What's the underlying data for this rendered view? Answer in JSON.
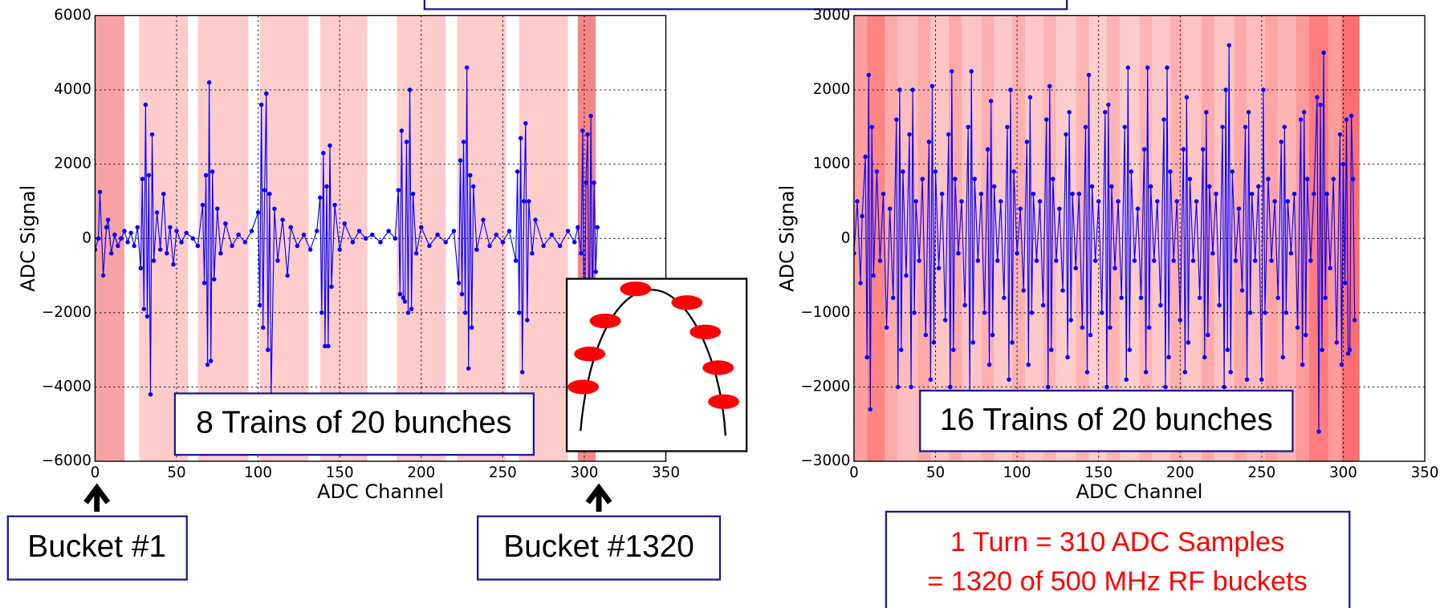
{
  "chart_data": [
    {
      "type": "line",
      "xlabel": "ADC Channel",
      "ylabel": "ADC Signal",
      "color": "#0000ff",
      "grid": true,
      "xlim": [
        0,
        350
      ],
      "xticks": [
        0,
        50,
        100,
        150,
        200,
        250,
        300,
        350
      ],
      "ylim": [
        -6000,
        6000
      ],
      "yticks": [
        {
          "value": -6000,
          "label": "−6000"
        },
        {
          "value": -4000,
          "label": "−4000"
        },
        {
          "value": -2000,
          "label": "−2000"
        },
        0,
        2000,
        4000,
        6000
      ],
      "bands": [
        {
          "x0": 0,
          "x1": 18,
          "color": "#f7a3a3"
        },
        {
          "x0": 27,
          "x1": 57,
          "color": "#ffcccc"
        },
        {
          "x0": 63,
          "x1": 94,
          "color": "#ffcccc"
        },
        {
          "x0": 101,
          "x1": 131,
          "color": "#ffcccc"
        },
        {
          "x0": 138,
          "x1": 167,
          "color": "#ffcccc"
        },
        {
          "x0": 185,
          "x1": 215,
          "color": "#ffcccc"
        },
        {
          "x0": 222,
          "x1": 252,
          "color": "#ffcccc"
        },
        {
          "x0": 260,
          "x1": 290,
          "color": "#ffcccc"
        },
        {
          "x0": 296,
          "x1": 307,
          "color": "#f48888"
        }
      ],
      "x": [
        0,
        2,
        3,
        5,
        7,
        8,
        10,
        12,
        14,
        16,
        18,
        20,
        22,
        24,
        26,
        28,
        29,
        30,
        31,
        32,
        33,
        34,
        35,
        36,
        38,
        40,
        42,
        44,
        46,
        48,
        50,
        53,
        56,
        60,
        63,
        66,
        67,
        68,
        69,
        70,
        71,
        72,
        73,
        75,
        77,
        80,
        84,
        88,
        92,
        96,
        100,
        101,
        102,
        103,
        104,
        105,
        106,
        107,
        108,
        110,
        112,
        115,
        118,
        120,
        124,
        128,
        132,
        136,
        138,
        139,
        140,
        141,
        142,
        143,
        144,
        145,
        147,
        150,
        153,
        158,
        162,
        166,
        170,
        175,
        180,
        184,
        186,
        187,
        188,
        189,
        190,
        191,
        192,
        193,
        194,
        195,
        197,
        200,
        205,
        210,
        215,
        220,
        223,
        224,
        225,
        226,
        227,
        228,
        229,
        230,
        231,
        232,
        234,
        238,
        242,
        246,
        250,
        254,
        258,
        259,
        260,
        261,
        262,
        263,
        264,
        265,
        266,
        268,
        270,
        275,
        280,
        285,
        290,
        294,
        296,
        298,
        299,
        300,
        301,
        302,
        303,
        304,
        305,
        306,
        307,
        308
      ],
      "values": [
        -300,
        0,
        1250,
        -1000,
        300,
        500,
        -400,
        100,
        -200,
        0,
        200,
        -100,
        150,
        -200,
        300,
        -800,
        1600,
        -1900,
        3600,
        -2100,
        1700,
        -4200,
        2800,
        -600,
        700,
        -300,
        1200,
        -400,
        300,
        -700,
        200,
        -100,
        150,
        0,
        -200,
        900,
        -1200,
        1700,
        -3400,
        4200,
        -3300,
        1800,
        -1100,
        800,
        -400,
        400,
        -200,
        100,
        -100,
        200,
        700,
        -1800,
        3600,
        -2400,
        1300,
        3900,
        -3000,
        1200,
        -4200,
        800,
        -600,
        500,
        -1000,
        300,
        -200,
        100,
        -300,
        200,
        1100,
        -2000,
        2300,
        -2900,
        1400,
        -2900,
        2500,
        -1300,
        900,
        -300,
        400,
        -100,
        200,
        0,
        100,
        -100,
        200,
        0,
        1300,
        -1500,
        2900,
        -1600,
        -1700,
        2600,
        -2000,
        4000,
        -1900,
        1200,
        -400,
        300,
        -200,
        100,
        -100,
        200,
        -1200,
        2100,
        -1500,
        2600,
        -2000,
        4600,
        -3500,
        1700,
        -2400,
        1400,
        -300,
        500,
        -200,
        100,
        -100,
        200,
        -600,
        1800,
        -2000,
        2700,
        -3600,
        1000,
        3100,
        -2200,
        1000,
        -400,
        500,
        -200,
        100,
        -200,
        200,
        -100,
        300,
        -400,
        2900,
        -4000,
        1500,
        2800,
        -3200,
        3300,
        -2000,
        1500,
        -900,
        300
      ],
      "annotations": [
        "8 Trains of 20 bunches",
        "Bucket #1",
        "Bucket #1320"
      ]
    },
    {
      "type": "line",
      "xlabel": "ADC Channel",
      "ylabel": "ADC Signal",
      "color": "#0000ff",
      "grid": true,
      "xlim": [
        0,
        350
      ],
      "xticks": [
        0,
        50,
        100,
        150,
        200,
        250,
        300,
        350
      ],
      "ylim": [
        -3000,
        3000
      ],
      "yticks": [
        {
          "value": -3000,
          "label": "−3000"
        },
        {
          "value": -2000,
          "label": "−2000"
        },
        {
          "value": -1000,
          "label": "−1000"
        },
        0,
        1000,
        2000,
        3000
      ],
      "bands": [
        {
          "x0": 0,
          "x1": 8,
          "color": "#ffa0a0"
        },
        {
          "x0": 8,
          "x1": 19,
          "color": "#ff8585"
        },
        {
          "x0": 19,
          "x1": 27,
          "color": "#ffaaaa"
        },
        {
          "x0": 27,
          "x1": 39,
          "color": "#ffbcbc"
        },
        {
          "x0": 39,
          "x1": 47,
          "color": "#ffaaaa"
        },
        {
          "x0": 47,
          "x1": 58,
          "color": "#ffc4c4"
        },
        {
          "x0": 58,
          "x1": 66,
          "color": "#ffaaaa"
        },
        {
          "x0": 66,
          "x1": 78,
          "color": "#ffc4c4"
        },
        {
          "x0": 78,
          "x1": 86,
          "color": "#ffb0b0"
        },
        {
          "x0": 86,
          "x1": 97,
          "color": "#ffc8c8"
        },
        {
          "x0": 97,
          "x1": 105,
          "color": "#ffb0b0"
        },
        {
          "x0": 105,
          "x1": 116,
          "color": "#ffc8c8"
        },
        {
          "x0": 116,
          "x1": 124,
          "color": "#ffb4b4"
        },
        {
          "x0": 124,
          "x1": 136,
          "color": "#ffcccc"
        },
        {
          "x0": 136,
          "x1": 144,
          "color": "#ffb4b4"
        },
        {
          "x0": 144,
          "x1": 155,
          "color": "#ffcccc"
        },
        {
          "x0": 155,
          "x1": 163,
          "color": "#ffb4b4"
        },
        {
          "x0": 163,
          "x1": 175,
          "color": "#ffcccc"
        },
        {
          "x0": 175,
          "x1": 183,
          "color": "#ffb4b4"
        },
        {
          "x0": 183,
          "x1": 194,
          "color": "#ffc8c8"
        },
        {
          "x0": 194,
          "x1": 202,
          "color": "#ffb0b0"
        },
        {
          "x0": 202,
          "x1": 213,
          "color": "#ffc4c4"
        },
        {
          "x0": 213,
          "x1": 221,
          "color": "#ffaaaa"
        },
        {
          "x0": 221,
          "x1": 233,
          "color": "#ffc4c4"
        },
        {
          "x0": 233,
          "x1": 241,
          "color": "#ffaaaa"
        },
        {
          "x0": 241,
          "x1": 252,
          "color": "#ffbcbc"
        },
        {
          "x0": 252,
          "x1": 260,
          "color": "#ffa4a4"
        },
        {
          "x0": 260,
          "x1": 271,
          "color": "#ffb4b4"
        },
        {
          "x0": 271,
          "x1": 279,
          "color": "#ff9a9a"
        },
        {
          "x0": 279,
          "x1": 291,
          "color": "#ff7c7c"
        },
        {
          "x0": 291,
          "x1": 299,
          "color": "#ff9a9a"
        },
        {
          "x0": 299,
          "x1": 310,
          "color": "#ff6e6e"
        }
      ],
      "x": [
        0,
        2,
        4,
        5,
        7,
        8,
        9,
        10,
        11,
        12,
        14,
        16,
        18,
        20,
        22,
        24,
        26,
        27,
        28,
        29,
        30,
        32,
        34,
        35,
        36,
        37,
        38,
        40,
        42,
        44,
        46,
        47,
        48,
        49,
        50,
        52,
        54,
        56,
        58,
        59,
        60,
        61,
        62,
        64,
        66,
        68,
        70,
        71,
        72,
        73,
        74,
        76,
        78,
        80,
        82,
        83,
        84,
        85,
        86,
        88,
        90,
        92,
        94,
        95,
        96,
        97,
        98,
        100,
        102,
        104,
        106,
        107,
        108,
        109,
        110,
        112,
        114,
        116,
        118,
        119,
        120,
        121,
        122,
        124,
        126,
        128,
        130,
        131,
        132,
        133,
        134,
        136,
        138,
        140,
        142,
        143,
        144,
        145,
        146,
        148,
        150,
        152,
        154,
        155,
        156,
        157,
        158,
        160,
        162,
        164,
        166,
        167,
        168,
        169,
        170,
        172,
        174,
        176,
        178,
        179,
        180,
        181,
        182,
        184,
        186,
        188,
        190,
        191,
        192,
        193,
        194,
        196,
        198,
        200,
        202,
        203,
        204,
        205,
        206,
        208,
        210,
        212,
        214,
        215,
        216,
        217,
        218,
        220,
        222,
        224,
        226,
        227,
        228,
        229,
        230,
        231,
        232,
        234,
        236,
        238,
        240,
        241,
        242,
        243,
        244,
        246,
        248,
        250,
        251,
        252,
        254,
        256,
        258,
        260,
        262,
        263,
        264,
        265,
        266,
        268,
        270,
        272,
        274,
        275,
        276,
        277,
        278,
        280,
        282,
        284,
        285,
        286,
        287,
        288,
        289,
        290,
        292,
        294,
        296,
        298,
        299,
        300,
        301,
        302,
        303,
        304,
        305,
        306,
        307
      ],
      "values": [
        -200,
        500,
        -600,
        300,
        1100,
        -1600,
        2200,
        -2300,
        1500,
        -500,
        900,
        -300,
        600,
        -1200,
        400,
        -800,
        1600,
        -2000,
        2000,
        -1500,
        900,
        -500,
        1400,
        -2000,
        2000,
        -1000,
        500,
        -300,
        800,
        -1300,
        1300,
        -1900,
        2050,
        -1400,
        900,
        -400,
        600,
        -1100,
        1400,
        -2000,
        2250,
        -1500,
        800,
        -200,
        500,
        -900,
        1500,
        -2100,
        2250,
        -1400,
        800,
        -300,
        600,
        -1000,
        1200,
        -1700,
        1850,
        -1300,
        700,
        -300,
        500,
        -800,
        1500,
        -1900,
        2000,
        -1400,
        900,
        -200,
        400,
        -700,
        1300,
        -1700,
        1900,
        -1000,
        600,
        -300,
        500,
        -900,
        1600,
        -2000,
        2050,
        -1500,
        800,
        -300,
        400,
        -700,
        1400,
        -1600,
        1700,
        -1100,
        600,
        -400,
        600,
        -1200,
        1500,
        -1800,
        2200,
        -1300,
        700,
        -300,
        500,
        -1000,
        1700,
        -2000,
        1800,
        -1200,
        700,
        -400,
        500,
        -800,
        1500,
        -1900,
        2300,
        -1500,
        900,
        -300,
        400,
        -800,
        1200,
        -1800,
        2300,
        -1200,
        700,
        -300,
        500,
        -900,
        1600,
        -2000,
        2300,
        -1600,
        900,
        -300,
        500,
        -1100,
        1200,
        -1800,
        1900,
        -1400,
        800,
        -300,
        500,
        -800,
        1200,
        -1600,
        1700,
        -1300,
        700,
        -200,
        600,
        -900,
        1500,
        -2000,
        2000,
        -1500,
        2600,
        -1800,
        900,
        -300,
        400,
        -700,
        1500,
        -1900,
        1700,
        -1000,
        600,
        -300,
        700,
        -1900,
        2000,
        -1000,
        800,
        -300,
        500,
        -800,
        1300,
        -1600,
        1500,
        -1000,
        500,
        -200,
        600,
        -1200,
        1600,
        -1700,
        1700,
        -1300,
        800,
        -300,
        600,
        1900,
        -2600,
        1800,
        -1500,
        2500,
        -800,
        600,
        -400,
        800,
        -1400,
        1400,
        -1700,
        1000,
        -600,
        1600,
        -1550,
        -1500,
        1650,
        800,
        -1100
      ],
      "annotations": [
        "16 Trains of 20 bunches"
      ],
      "note_lines": [
        "1 Turn = 310 ADC Samples",
        "= 1320 of  500 MHz RF buckets"
      ]
    }
  ]
}
